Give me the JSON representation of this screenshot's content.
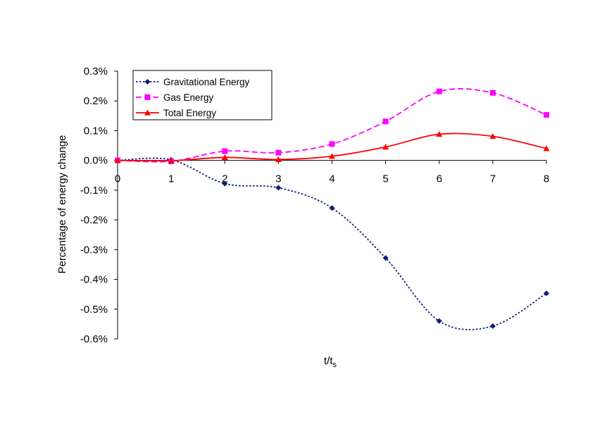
{
  "chart_data": {
    "type": "line",
    "title": "",
    "xlabel": "t/t",
    "xlabel_sub": "s",
    "ylabel": "Percentage of energy change",
    "x": [
      0,
      1,
      2,
      3,
      4,
      5,
      6,
      7,
      8
    ],
    "xlim": [
      0,
      8
    ],
    "ylim": [
      -0.6,
      0.3
    ],
    "x_ticks": [
      "0",
      "1",
      "2",
      "3",
      "4",
      "5",
      "6",
      "7",
      "8"
    ],
    "y_ticks": [
      {
        "value": 0.3,
        "label": "0.3%"
      },
      {
        "value": 0.2,
        "label": "0.2%"
      },
      {
        "value": 0.1,
        "label": "0.1%"
      },
      {
        "value": 0.0,
        "label": "0.0%"
      },
      {
        "value": -0.1,
        "label": "-0.1%"
      },
      {
        "value": -0.2,
        "label": "-0.2%"
      },
      {
        "value": -0.3,
        "label": "-0.3%"
      },
      {
        "value": -0.4,
        "label": "-0.4%"
      },
      {
        "value": -0.5,
        "label": "-0.5%"
      },
      {
        "value": -0.6,
        "label": "-0.6%"
      }
    ],
    "grid": false,
    "legend_position": "top-left",
    "series": [
      {
        "name": "Gravitational Energy",
        "color": "#0f1c7a",
        "line_style": "dotted",
        "marker": "diamond",
        "values": [
          0.0,
          0.002,
          -0.078,
          -0.092,
          -0.16,
          -0.328,
          -0.54,
          -0.557,
          -0.447
        ]
      },
      {
        "name": "Gas Energy",
        "color": "#ff00ff",
        "line_style": "dashed",
        "marker": "square",
        "values": [
          0.0,
          -0.003,
          0.031,
          0.026,
          0.055,
          0.131,
          0.232,
          0.227,
          0.153
        ]
      },
      {
        "name": "Total Energy",
        "color": "#ff0000",
        "line_style": "solid",
        "marker": "triangle",
        "values": [
          0.0,
          -0.001,
          0.01,
          0.003,
          0.014,
          0.045,
          0.088,
          0.081,
          0.04
        ]
      }
    ]
  }
}
